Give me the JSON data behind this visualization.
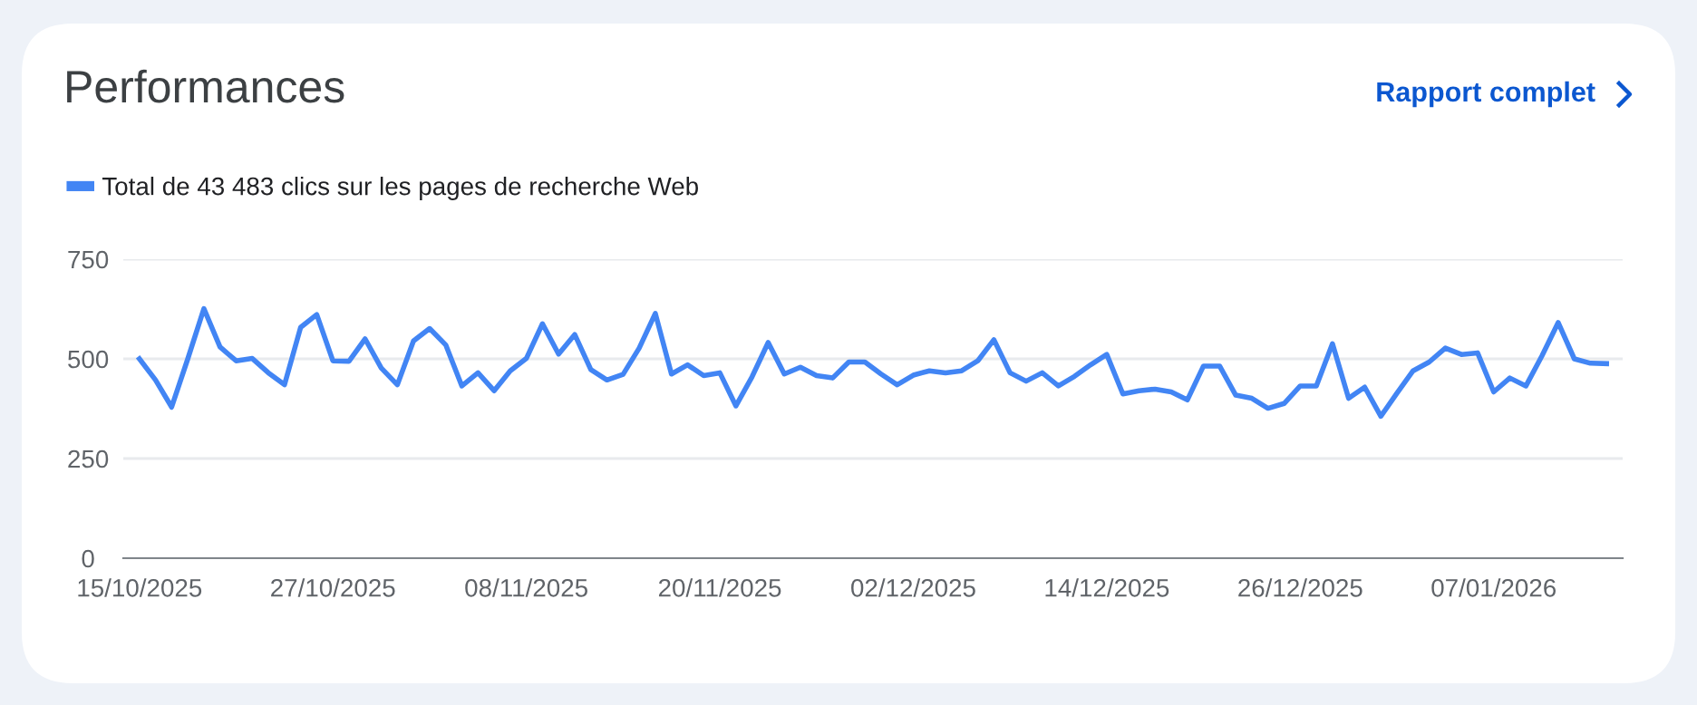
{
  "chart_data": {
    "type": "line",
    "title": "Performances",
    "annotations": [
      "Rapport complet"
    ],
    "x": [
      "2025-10-15",
      "2025-10-16",
      "2025-10-17",
      "2025-10-18",
      "2025-10-19",
      "2025-10-20",
      "2025-10-21",
      "2025-10-22",
      "2025-10-23",
      "2025-10-24",
      "2025-10-25",
      "2025-10-26",
      "2025-10-27",
      "2025-10-28",
      "2025-10-29",
      "2025-10-30",
      "2025-10-31",
      "2025-11-01",
      "2025-11-02",
      "2025-11-03",
      "2025-11-04",
      "2025-11-05",
      "2025-11-06",
      "2025-11-07",
      "2025-11-08",
      "2025-11-09",
      "2025-11-10",
      "2025-11-11",
      "2025-11-12",
      "2025-11-13",
      "2025-11-14",
      "2025-11-15",
      "2025-11-16",
      "2025-11-17",
      "2025-11-18",
      "2025-11-19",
      "2025-11-20",
      "2025-11-21",
      "2025-11-22",
      "2025-11-23",
      "2025-11-24",
      "2025-11-25",
      "2025-11-26",
      "2025-11-27",
      "2025-11-28",
      "2025-11-29",
      "2025-11-30",
      "2025-12-01",
      "2025-12-02",
      "2025-12-03",
      "2025-12-04",
      "2025-12-05",
      "2025-12-06",
      "2025-12-07",
      "2025-12-08",
      "2025-12-09",
      "2025-12-10",
      "2025-12-11",
      "2025-12-12",
      "2025-12-13",
      "2025-12-14",
      "2025-12-15",
      "2025-12-16",
      "2025-12-17",
      "2025-12-18",
      "2025-12-19",
      "2025-12-20",
      "2025-12-21",
      "2025-12-22",
      "2025-12-23",
      "2025-12-24",
      "2025-12-25",
      "2025-12-26",
      "2025-12-27",
      "2025-12-28",
      "2025-12-29",
      "2025-12-30",
      "2025-12-31",
      "2026-01-01",
      "2026-01-02",
      "2026-01-03",
      "2026-01-04",
      "2026-01-05",
      "2026-01-06",
      "2026-01-07",
      "2026-01-08",
      "2026-01-09",
      "2026-01-10",
      "2026-01-11",
      "2026-01-12",
      "2026-01-13",
      "2026-01-14"
    ],
    "series": [
      {
        "name": "Total de 43 483 clics sur les pages de recherche Web",
        "color": "#4285f4",
        "values": [
          500,
          447,
          379,
          500,
          626,
          530,
          495,
          501,
          465,
          435,
          579,
          611,
          495,
          494,
          550,
          477,
          435,
          545,
          576,
          535,
          432,
          465,
          420,
          470,
          501,
          588,
          512,
          561,
          473,
          447,
          461,
          527,
          614,
          462,
          485,
          458,
          465,
          382,
          455,
          541,
          462,
          479,
          458,
          452,
          492,
          492,
          462,
          435,
          459,
          470,
          465,
          470,
          495,
          548,
          465,
          444,
          465,
          432,
          456,
          485,
          511,
          412,
          420,
          424,
          417,
          397,
          482,
          482,
          409,
          401,
          376,
          388,
          432,
          432,
          538,
          401,
          429,
          356,
          414,
          470,
          492,
          527,
          511,
          515,
          417,
          452,
          432,
          508,
          591,
          500,
          489,
          488
        ]
      }
    ],
    "xlim": [
      "2025-10-14",
      "2026-01-15"
    ],
    "xticks": [
      {
        "value": "2025-10-15",
        "label": "15/10/2025"
      },
      {
        "value": "2025-10-27",
        "label": "27/10/2025"
      },
      {
        "value": "2025-11-08",
        "label": "08/11/2025"
      },
      {
        "value": "2025-11-20",
        "label": "20/11/2025"
      },
      {
        "value": "2025-12-02",
        "label": "02/12/2025"
      },
      {
        "value": "2025-12-14",
        "label": "14/12/2025"
      },
      {
        "value": "2025-12-26",
        "label": "26/12/2025"
      },
      {
        "value": "2026-01-07",
        "label": "07/01/2026"
      }
    ],
    "ylim": [
      0,
      750
    ],
    "yticks": [
      0,
      250,
      500,
      750
    ],
    "grid": "y",
    "legend": "top left",
    "marker": "none",
    "line_style": "solid"
  }
}
